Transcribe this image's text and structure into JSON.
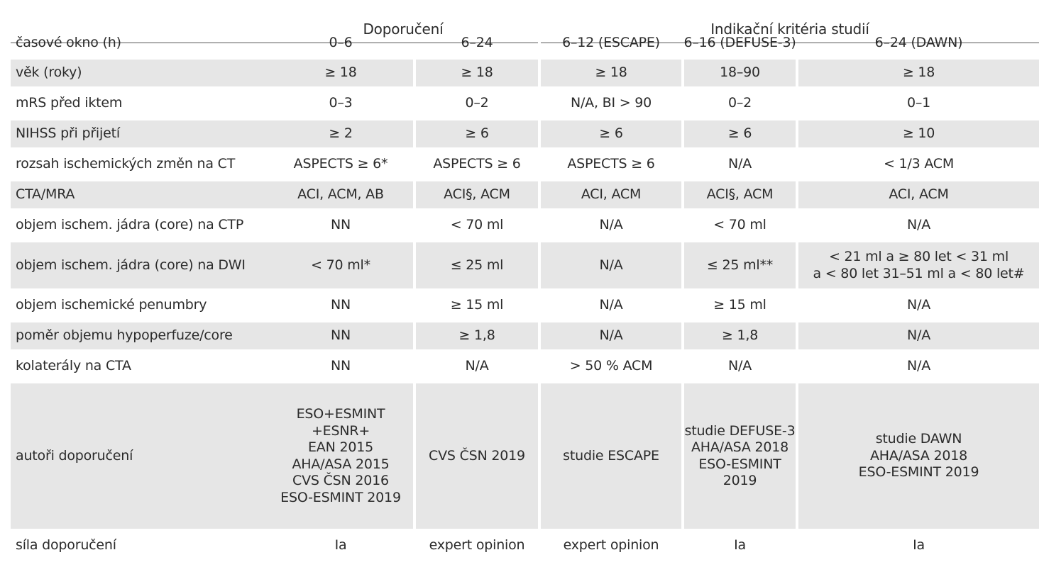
{
  "header": {
    "group_recommendations": "Doporučení",
    "group_criteria": "Indikační kritéria studií"
  },
  "rows": [
    {
      "label": "časové okno (h)",
      "cells": [
        "0–6",
        "6–24",
        "6–12 (ESCAPE)",
        "6–16 (DEFUSE-3)",
        "6–24 (DAWN)"
      ]
    },
    {
      "label": "věk (roky)",
      "cells": [
        "≥ 18",
        "≥ 18",
        "≥ 18",
        "18–90",
        "≥ 18"
      ]
    },
    {
      "label": "mRS před iktem",
      "cells": [
        "0–3",
        "0–2",
        "N/A, BI > 90",
        "0–2",
        "0–1"
      ]
    },
    {
      "label": "NIHSS při přijetí",
      "cells": [
        "≥ 2",
        "≥ 6",
        "≥ 6",
        "≥ 6",
        "≥ 10"
      ]
    },
    {
      "label": "rozsah ischemických změn na CT",
      "cells": [
        "ASPECTS ≥ 6*",
        "ASPECTS ≥ 6",
        "ASPECTS ≥ 6",
        "N/A",
        "< 1/3 ACM"
      ]
    },
    {
      "label": "CTA/MRA",
      "cells": [
        "ACI, ACM, AB",
        "ACI§, ACM",
        "ACI, ACM",
        "ACI§, ACM",
        "ACI, ACM"
      ]
    },
    {
      "label": "objem ischem. jádra (core) na CTP",
      "cells": [
        "NN",
        "< 70 ml",
        "N/A",
        "< 70 ml",
        "N/A"
      ]
    },
    {
      "label": "objem ischem. jádra (core) na DWI",
      "cells": [
        "< 70 ml*",
        "≤ 25 ml",
        "N/A",
        "≤ 25 ml**",
        "< 21 ml a ≥ 80 let < 31 ml\na < 80 let 31–51 ml a < 80 let#"
      ]
    },
    {
      "label": "objem ischemické penumbry",
      "cells": [
        "NN",
        "≥ 15 ml",
        "N/A",
        "≥ 15 ml",
        "N/A"
      ]
    },
    {
      "label": "poměr objemu hypoperfuze/core",
      "cells": [
        "NN",
        "≥ 1,8",
        "N/A",
        "≥ 1,8",
        "N/A"
      ]
    },
    {
      "label": "kolaterály na CTA",
      "cells": [
        "NN",
        "N/A",
        "> 50 % ACM",
        "N/A",
        "N/A"
      ]
    },
    {
      "label": "autoři doporučení",
      "cells": [
        "ESO+ESMINT\n+ESNR+\nEAN 2015\nAHA/ASA 2015\nCVS ČSN 2016\nESO-ESMINT 2019",
        "CVS ČSN 2019",
        "studie ESCAPE",
        "studie DEFUSE-3\nAHA/ASA 2018\nESO-ESMINT 2019",
        "studie DAWN\nAHA/ASA 2018\nESO-ESMINT 2019"
      ]
    },
    {
      "label": "síla doporučení",
      "cells": [
        "Ia",
        "expert opinion",
        "expert opinion",
        "Ia",
        "Ia"
      ]
    }
  ]
}
